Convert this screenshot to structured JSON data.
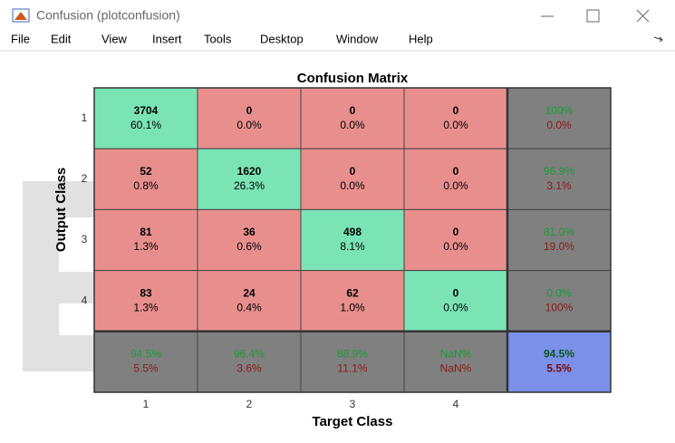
{
  "window": {
    "title": "Confusion (plotconfusion)",
    "menu": [
      "File",
      "Edit",
      "View",
      "Insert",
      "Tools",
      "Desktop",
      "Window",
      "Help"
    ]
  },
  "matrix": {
    "title": "Confusion Matrix",
    "x_label": "Target Class",
    "y_label": "Output Class",
    "col_labels": [
      1,
      2,
      3,
      4
    ],
    "row_labels": [
      1,
      2,
      3,
      4
    ],
    "rows": [
      [
        {
          "count": 3704,
          "percent": "60.1%"
        },
        {
          "count": 0,
          "percent": "0.0%"
        },
        {
          "count": 0,
          "percent": "0.0%"
        },
        {
          "count": 0,
          "percent": "0.0%"
        }
      ],
      [
        {
          "count": 52,
          "percent": "0.8%"
        },
        {
          "count": 1620,
          "percent": "26.3%"
        },
        {
          "count": 0,
          "percent": "0.0%"
        },
        {
          "count": 0,
          "percent": "0.0%"
        }
      ],
      [
        {
          "count": 81,
          "percent": "1.3%"
        },
        {
          "count": 36,
          "percent": "0.6%"
        },
        {
          "count": 498,
          "percent": "8.1%"
        },
        {
          "count": 0,
          "percent": "0.0%"
        }
      ],
      [
        {
          "count": 83,
          "percent": "1.3%"
        },
        {
          "count": 24,
          "percent": "0.4%"
        },
        {
          "count": 62,
          "percent": "1.0%"
        },
        {
          "count": 0,
          "percent": "0.0%"
        }
      ]
    ],
    "row_summary": [
      {
        "correct": "100%",
        "incorrect": "0.0%"
      },
      {
        "correct": "96.9%",
        "incorrect": "3.1%"
      },
      {
        "correct": "81.0%",
        "incorrect": "19.0%"
      },
      {
        "correct": "0.0%",
        "incorrect": "100%"
      }
    ],
    "col_summary": [
      {
        "correct": "94.5%",
        "incorrect": "5.5%"
      },
      {
        "correct": "96.4%",
        "incorrect": "3.6%"
      },
      {
        "correct": "88.9%",
        "incorrect": "11.1%"
      },
      {
        "correct": "NaN%",
        "incorrect": "NaN%"
      }
    ],
    "overall": {
      "correct": "94.5%",
      "incorrect": "5.5%"
    }
  }
}
